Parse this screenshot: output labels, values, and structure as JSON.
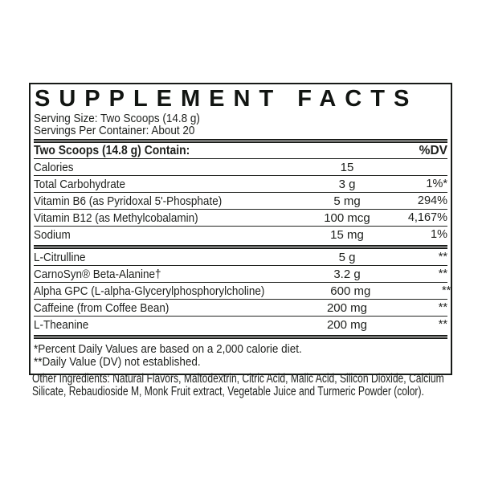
{
  "panel": {
    "title": "SUPPLEMENT FACTS",
    "serving_size": "Serving Size: Two Scoops (14.8 g)",
    "servings_per_container": "Servings Per Container: About 20",
    "table": {
      "header_left": "Two Scoops (14.8 g) Contain:",
      "header_right": "%DV",
      "daily_value_rows": [
        {
          "name": "Calories",
          "amount": "15",
          "dv": ""
        },
        {
          "name": "Total Carbohydrate",
          "amount": "3 g",
          "dv": "1%*"
        },
        {
          "name": "Vitamin B6 (as Pyridoxal 5'-Phosphate)",
          "amount": "5 mg",
          "dv": "294%"
        },
        {
          "name": "Vitamin B12 (as Methylcobalamin)",
          "amount": "100 mcg",
          "dv": "4,167%"
        },
        {
          "name": "Sodium",
          "amount": "15 mg",
          "dv": "1%"
        }
      ],
      "no_dv_rows": [
        {
          "name": "L-Citrulline",
          "amount": "5 g",
          "dv": "**"
        },
        {
          "name": "CarnoSyn® Beta-Alanine†",
          "amount": "3.2 g",
          "dv": "**"
        },
        {
          "name": "Alpha GPC (L-alpha-Glycerylphosphorylcholine)",
          "amount": "600 mg",
          "dv": "**"
        },
        {
          "name": "Caffeine (from Coffee Bean)",
          "amount": "200 mg",
          "dv": "**"
        },
        {
          "name": "L-Theanine",
          "amount": "200 mg",
          "dv": "**"
        }
      ]
    },
    "footnotes": [
      "*Percent Daily Values are based on a 2,000 calorie diet.",
      "**Daily Value (DV) not established."
    ]
  },
  "other_ingredients": {
    "lines": [
      "Other Ingredients: Natural Flavors, Maltodextrin, Citric Acid, Malic Acid, Silicon Dioxide, Calcium",
      "Silicate, Rebaudioside M, Monk Fruit extract, Vegetable Juice and Turmeric Powder (color)."
    ]
  },
  "colors": {
    "text": "#1e201d",
    "title": "#121512",
    "rule": "#1b1d1a",
    "background": "#ffffff"
  }
}
